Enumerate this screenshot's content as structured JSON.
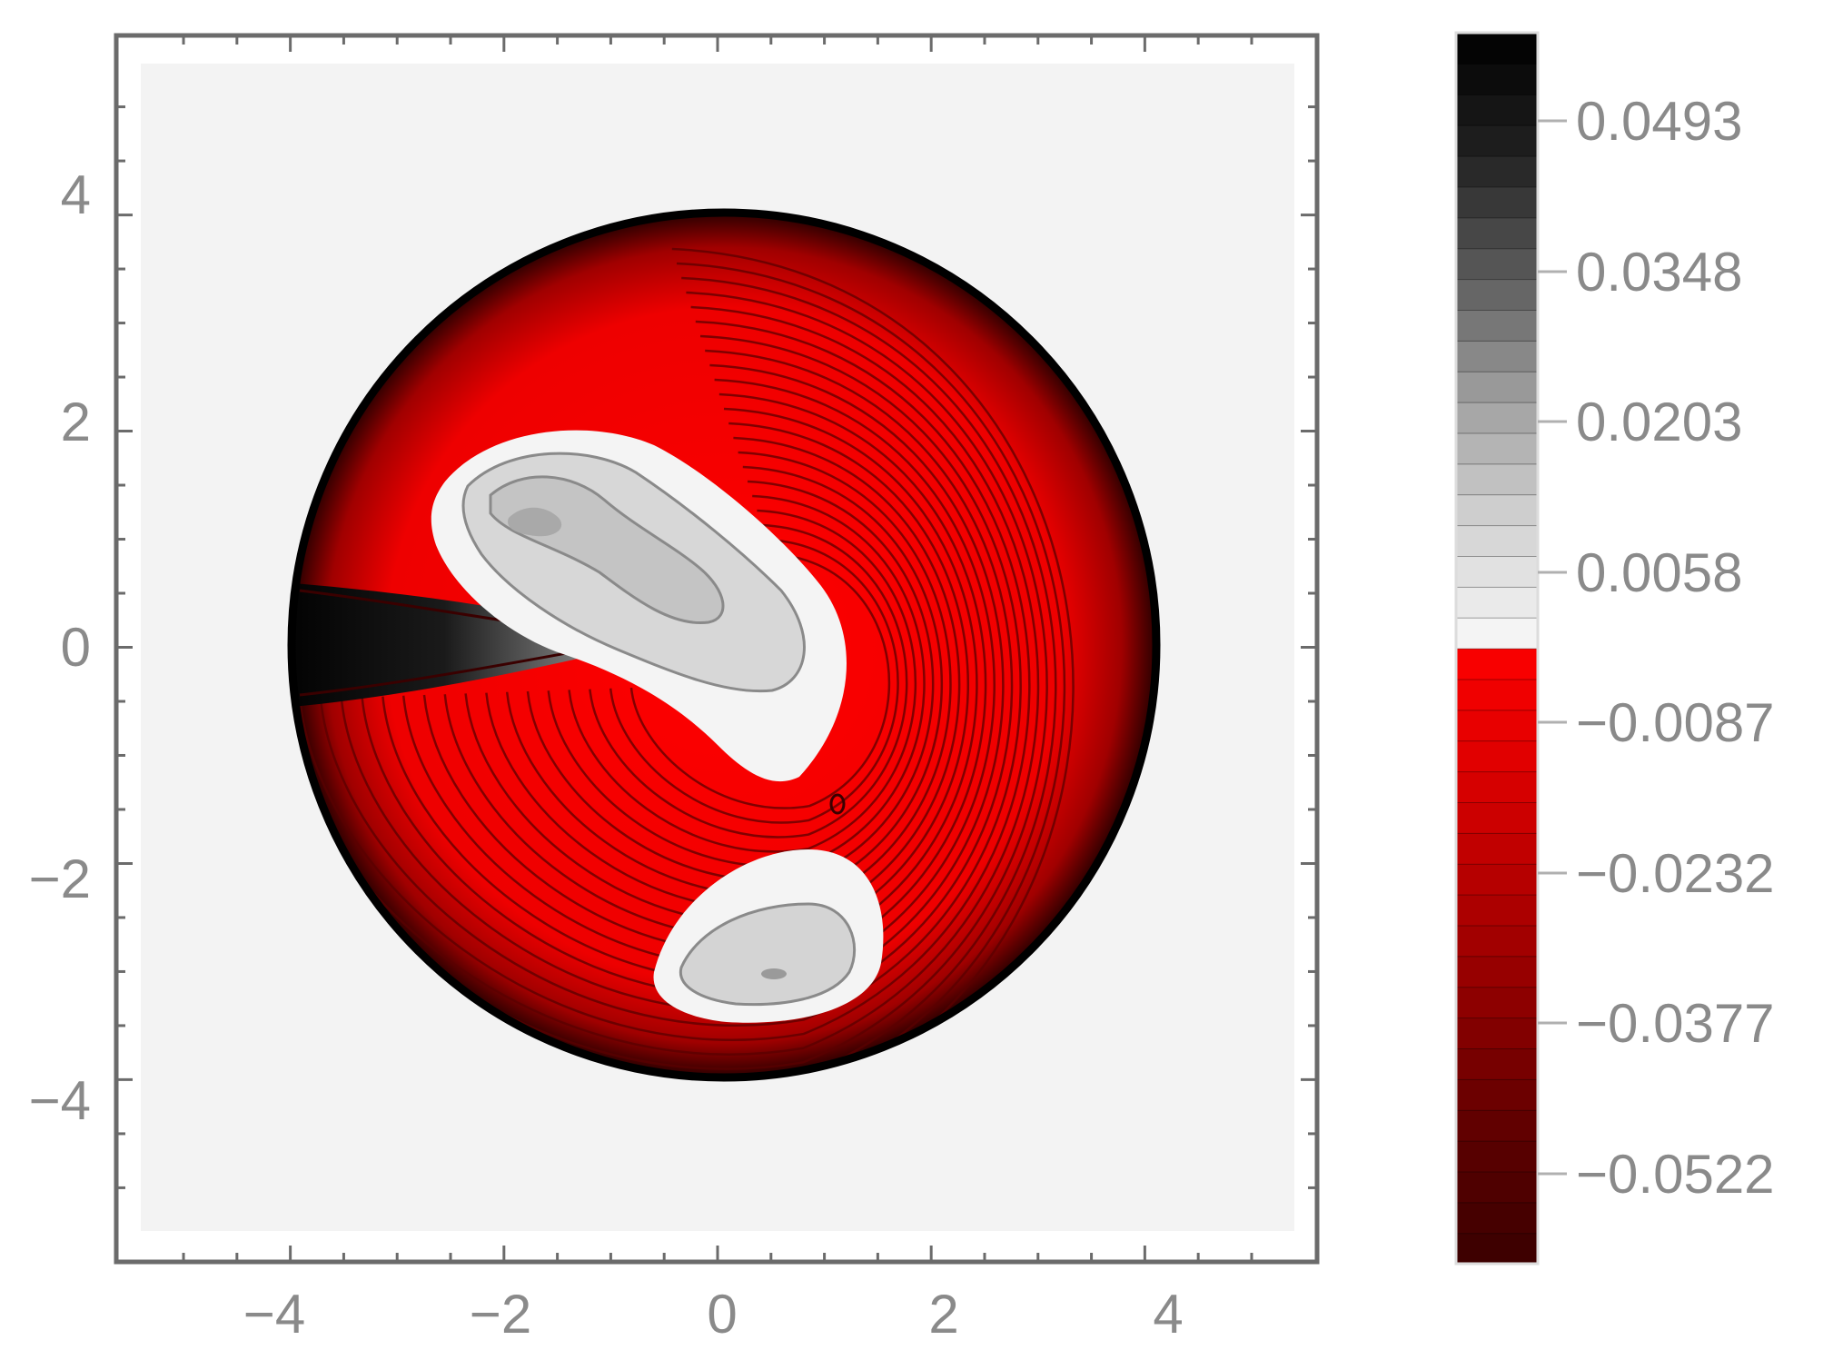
{
  "chart_data": {
    "type": "heatmap",
    "subtype": "contour",
    "title": "",
    "xlabel": "",
    "ylabel": "",
    "xlim": [
      -5.4,
      5.4
    ],
    "ylim": [
      -5.4,
      5.4
    ],
    "x_ticks": [
      -4,
      -2,
      0,
      2,
      4
    ],
    "y_ticks": [
      -4,
      -2,
      0,
      2,
      4
    ],
    "x_tick_labels": [
      "−4",
      "−2",
      "0",
      "2",
      "4"
    ],
    "y_tick_labels": [
      "−4",
      "−2",
      "0",
      "2",
      "4"
    ],
    "grid": false,
    "background_color": "#f3f3f3",
    "domain": {
      "shape": "disk",
      "center": [
        0,
        0
      ],
      "radius": 3.8
    },
    "features": [
      {
        "kind": "positive-plume",
        "from": [
          -3.8,
          0.0
        ],
        "to": [
          -1.0,
          0.0
        ],
        "peak_value": 0.0493,
        "color_scale": "gray"
      },
      {
        "kind": "positive-lobe",
        "center": [
          -1.8,
          1.1
        ],
        "value": 0.0058,
        "color_scale": "gray"
      },
      {
        "kind": "positive-lobe",
        "center": [
          0.4,
          -2.9
        ],
        "value": 0.0058,
        "color_scale": "gray"
      }
    ],
    "colorbar": {
      "range": [
        -0.0608,
        0.0579
      ],
      "tick_values": [
        0.0493,
        0.0348,
        0.0203,
        0.0058,
        -0.0087,
        -0.0232,
        -0.0377,
        -0.0522
      ],
      "tick_labels": [
        "0.0493",
        "0.0348",
        "0.0203",
        "0.0058",
        "−0.0087",
        "−0.0232",
        "−0.0377",
        "−0.0522"
      ],
      "positive_colors": [
        "#f4f4f4",
        "#cfcfcf",
        "#9d9d9d",
        "#5a5a5a",
        "#202020",
        "#000000"
      ],
      "negative_colors": [
        "#ff0000",
        "#e00000",
        "#b40000",
        "#8a0000",
        "#5c0000",
        "#3a0000"
      ],
      "placement": "right"
    },
    "colors": {
      "frame": "#6b6b6b",
      "tick_text": "#8a8a8a"
    }
  }
}
